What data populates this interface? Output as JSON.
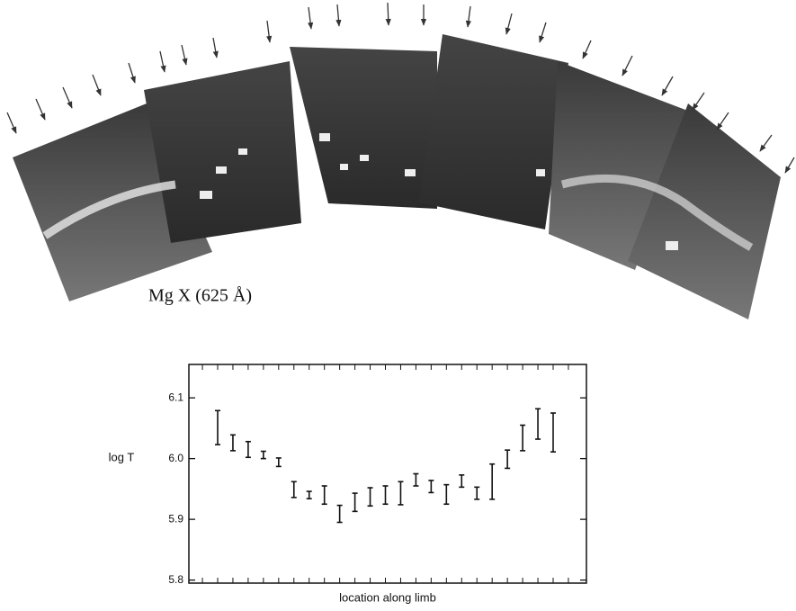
{
  "figure_label": "Mg X (625 Å)",
  "chart_data": {
    "type": "errorbar",
    "y_label": "log T",
    "x_label": "location along limb",
    "values": [
      6.051,
      6.026,
      6.015,
      6.006,
      5.994,
      5.949,
      5.94,
      5.94,
      5.909,
      5.928,
      5.937,
      5.94,
      5.943,
      5.965,
      5.954,
      5.941,
      5.963,
      5.943,
      5.962,
      5.999,
      6.034,
      6.057,
      6.043
    ],
    "errors": [
      0.028,
      0.013,
      0.013,
      0.006,
      0.007,
      0.013,
      0.006,
      0.015,
      0.014,
      0.015,
      0.015,
      0.015,
      0.019,
      0.01,
      0.01,
      0.016,
      0.01,
      0.01,
      0.029,
      0.015,
      0.021,
      0.025,
      0.032
    ],
    "color": "#111111",
    "ylim": [
      5.795,
      6.155
    ],
    "yticks": [
      5.8,
      5.9,
      {
        "value": 6,
        "label": "6.0"
      },
      6.1
    ]
  }
}
